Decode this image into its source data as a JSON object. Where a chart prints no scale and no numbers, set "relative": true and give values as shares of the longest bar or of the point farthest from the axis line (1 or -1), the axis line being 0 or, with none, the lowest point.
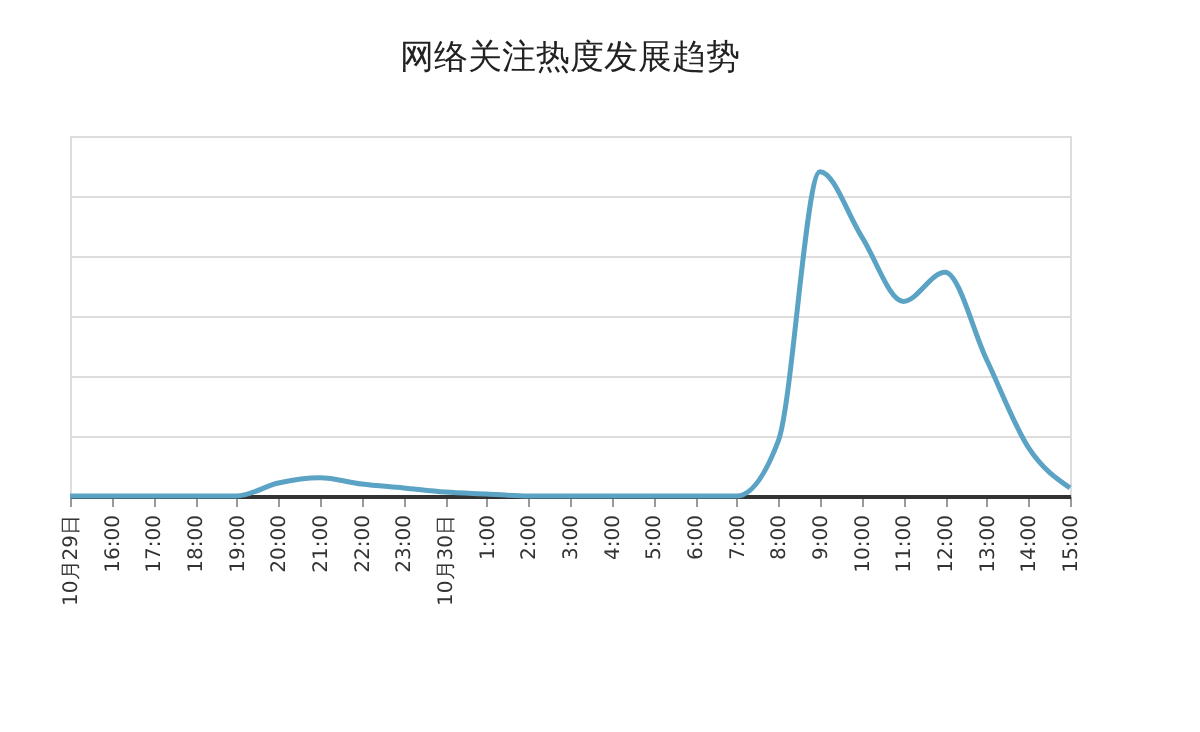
{
  "chart_data": {
    "type": "line",
    "title": "网络关注热度发展趋势",
    "relative": true,
    "grid": "y",
    "marker": "none",
    "line_style": "solid",
    "categories": [
      "10月29日",
      "16:00",
      "17:00",
      "18:00",
      "19:00",
      "20:00",
      "21:00",
      "22:00",
      "23:00",
      "10月30日",
      "1:00",
      "2:00",
      "3:00",
      "4:00",
      "5:00",
      "6:00",
      "7:00",
      "8:00",
      "9:00",
      "10:00",
      "11:00",
      "12:00",
      "13:00",
      "14:00",
      "15:00"
    ],
    "series": [
      {
        "color": "#5ba3c4",
        "values": [
          0,
          0,
          0,
          0,
          0,
          0.04,
          0.056,
          0.037,
          0.025,
          0.012,
          0.006,
          0,
          0,
          0,
          0,
          0,
          0,
          0.17,
          1,
          0.8,
          0.6,
          0.69,
          0.42,
          0.15,
          0.025
        ]
      }
    ]
  }
}
